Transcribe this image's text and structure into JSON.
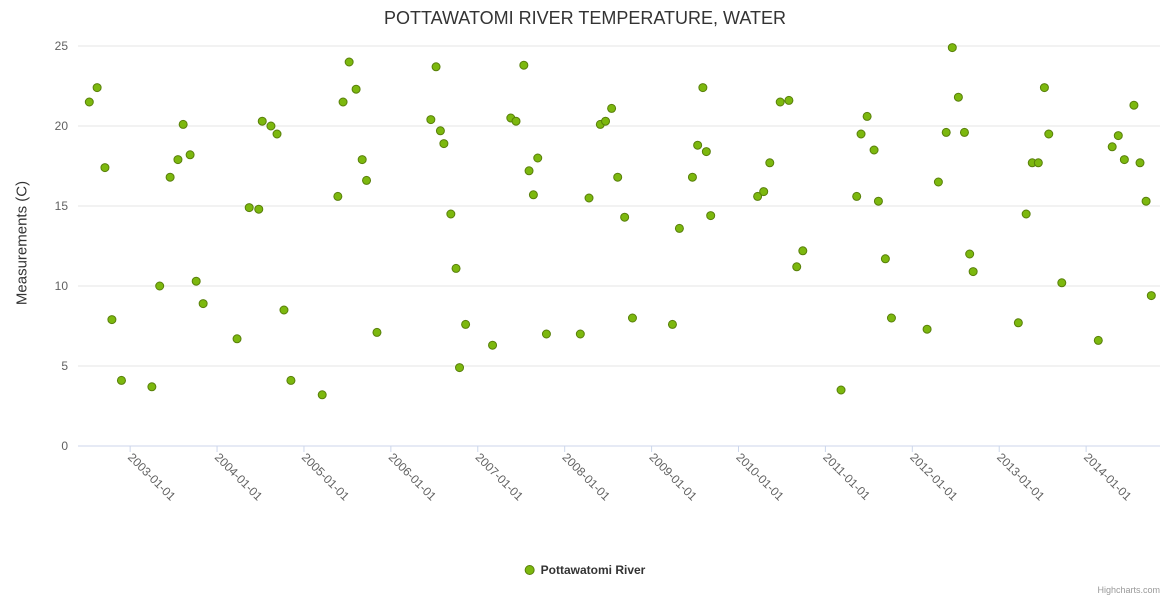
{
  "credits": "Highcharts.com",
  "chart_data": {
    "type": "scatter",
    "title": "POTTAWATOMI RIVER TEMPERATURE, WATER",
    "xlabel": "",
    "ylabel": "Measurements (C)",
    "ylim": [
      0,
      25
    ],
    "y_ticks": [
      0,
      5,
      10,
      15,
      20,
      25
    ],
    "xlim": [
      2002.4,
      2014.85
    ],
    "x_ticks": [
      {
        "x": 2003,
        "label": "2003-01-01"
      },
      {
        "x": 2004,
        "label": "2004-01-01"
      },
      {
        "x": 2005,
        "label": "2005-01-01"
      },
      {
        "x": 2006,
        "label": "2006-01-01"
      },
      {
        "x": 2007,
        "label": "2007-01-01"
      },
      {
        "x": 2008,
        "label": "2008-01-01"
      },
      {
        "x": 2009,
        "label": "2009-01-01"
      },
      {
        "x": 2010,
        "label": "2010-01-01"
      },
      {
        "x": 2011,
        "label": "2011-01-01"
      },
      {
        "x": 2012,
        "label": "2012-01-01"
      },
      {
        "x": 2013,
        "label": "2013-01-01"
      },
      {
        "x": 2014,
        "label": "2014-01-01"
      }
    ],
    "grid": "horizontal",
    "legend_position": "bottom-center",
    "colors": {
      "gridline": "#e6e6e6",
      "axis_line": "#ccd6eb",
      "tick_text": "#606060",
      "title_text": "#333333"
    },
    "series": [
      {
        "name": "Pottawatomi River",
        "color": "#7cb80e",
        "border_color": "#587f0a",
        "points": [
          [
            2002.53,
            21.5
          ],
          [
            2002.62,
            22.4
          ],
          [
            2002.71,
            17.4
          ],
          [
            2002.79,
            7.9
          ],
          [
            2002.9,
            4.1
          ],
          [
            2003.25,
            3.7
          ],
          [
            2003.34,
            10.0
          ],
          [
            2003.46,
            16.8
          ],
          [
            2003.55,
            17.9
          ],
          [
            2003.61,
            20.1
          ],
          [
            2003.69,
            18.2
          ],
          [
            2003.76,
            10.3
          ],
          [
            2003.84,
            8.9
          ],
          [
            2004.23,
            6.7
          ],
          [
            2004.37,
            14.9
          ],
          [
            2004.48,
            14.8
          ],
          [
            2004.52,
            20.3
          ],
          [
            2004.62,
            20.0
          ],
          [
            2004.69,
            19.5
          ],
          [
            2004.77,
            8.5
          ],
          [
            2004.85,
            4.1
          ],
          [
            2005.21,
            3.2
          ],
          [
            2005.39,
            15.6
          ],
          [
            2005.45,
            21.5
          ],
          [
            2005.52,
            24.0
          ],
          [
            2005.6,
            22.3
          ],
          [
            2005.67,
            17.9
          ],
          [
            2005.72,
            16.6
          ],
          [
            2005.84,
            7.1
          ],
          [
            2006.46,
            20.4
          ],
          [
            2006.52,
            23.7
          ],
          [
            2006.57,
            19.7
          ],
          [
            2006.61,
            18.9
          ],
          [
            2006.69,
            14.5
          ],
          [
            2006.75,
            11.1
          ],
          [
            2006.79,
            4.9
          ],
          [
            2006.86,
            7.6
          ],
          [
            2007.17,
            6.3
          ],
          [
            2007.38,
            20.5
          ],
          [
            2007.44,
            20.3
          ],
          [
            2007.53,
            23.8
          ],
          [
            2007.59,
            17.2
          ],
          [
            2007.64,
            15.7
          ],
          [
            2007.69,
            18.0
          ],
          [
            2007.79,
            7.0
          ],
          [
            2008.18,
            7.0
          ],
          [
            2008.28,
            15.5
          ],
          [
            2008.41,
            20.1
          ],
          [
            2008.47,
            20.3
          ],
          [
            2008.54,
            21.1
          ],
          [
            2008.61,
            16.8
          ],
          [
            2008.69,
            14.3
          ],
          [
            2008.78,
            8.0
          ],
          [
            2009.24,
            7.6
          ],
          [
            2009.32,
            13.6
          ],
          [
            2009.47,
            16.8
          ],
          [
            2009.53,
            18.8
          ],
          [
            2009.59,
            22.4
          ],
          [
            2009.63,
            18.4
          ],
          [
            2009.68,
            14.4
          ],
          [
            2010.22,
            15.6
          ],
          [
            2010.29,
            15.9
          ],
          [
            2010.36,
            17.7
          ],
          [
            2010.48,
            21.5
          ],
          [
            2010.58,
            21.6
          ],
          [
            2010.67,
            11.2
          ],
          [
            2010.74,
            12.2
          ],
          [
            2011.18,
            3.5
          ],
          [
            2011.36,
            15.6
          ],
          [
            2011.41,
            19.5
          ],
          [
            2011.48,
            20.6
          ],
          [
            2011.56,
            18.5
          ],
          [
            2011.61,
            15.3
          ],
          [
            2011.69,
            11.7
          ],
          [
            2011.76,
            8.0
          ],
          [
            2012.17,
            7.3
          ],
          [
            2012.3,
            16.5
          ],
          [
            2012.39,
            19.6
          ],
          [
            2012.46,
            24.9
          ],
          [
            2012.53,
            21.8
          ],
          [
            2012.6,
            19.6
          ],
          [
            2012.66,
            12.0
          ],
          [
            2012.7,
            10.9
          ],
          [
            2013.22,
            7.7
          ],
          [
            2013.31,
            14.5
          ],
          [
            2013.38,
            17.7
          ],
          [
            2013.45,
            17.7
          ],
          [
            2013.52,
            22.4
          ],
          [
            2013.57,
            19.5
          ],
          [
            2013.72,
            10.2
          ],
          [
            2014.14,
            6.6
          ],
          [
            2014.3,
            18.7
          ],
          [
            2014.37,
            19.4
          ],
          [
            2014.44,
            17.9
          ],
          [
            2014.55,
            21.3
          ],
          [
            2014.62,
            17.7
          ],
          [
            2014.69,
            15.3
          ],
          [
            2014.75,
            9.4
          ]
        ]
      }
    ]
  }
}
